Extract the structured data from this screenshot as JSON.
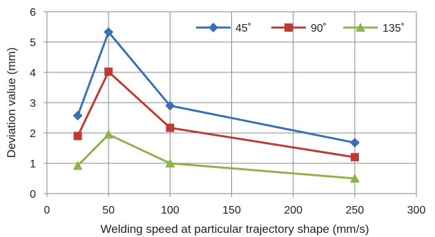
{
  "chart_data": {
    "type": "line",
    "xlabel": "Welding speed at particular trajectory shape (mm/s)",
    "ylabel": "Deviation value (mm)",
    "xlim": [
      0,
      300
    ],
    "ylim": [
      0,
      6
    ],
    "xticks": [
      0,
      50,
      100,
      150,
      200,
      250,
      300
    ],
    "yticks": [
      0,
      1,
      2,
      3,
      4,
      5,
      6
    ],
    "grid": true,
    "legend_position": "top-right",
    "series": [
      {
        "name": "45˚",
        "color": "#3a6fb6",
        "marker": "diamond",
        "x": [
          25,
          50,
          100,
          250
        ],
        "y": [
          2.57,
          5.33,
          2.9,
          1.68
        ]
      },
      {
        "name": "90˚",
        "color": "#be3a34",
        "marker": "square",
        "x": [
          25,
          50,
          100,
          250
        ],
        "y": [
          1.9,
          4.02,
          2.17,
          1.2
        ]
      },
      {
        "name": "135˚",
        "color": "#8db34a",
        "marker": "triangle",
        "x": [
          25,
          50,
          100,
          250
        ],
        "y": [
          0.92,
          1.95,
          1.0,
          0.5
        ]
      }
    ]
  }
}
